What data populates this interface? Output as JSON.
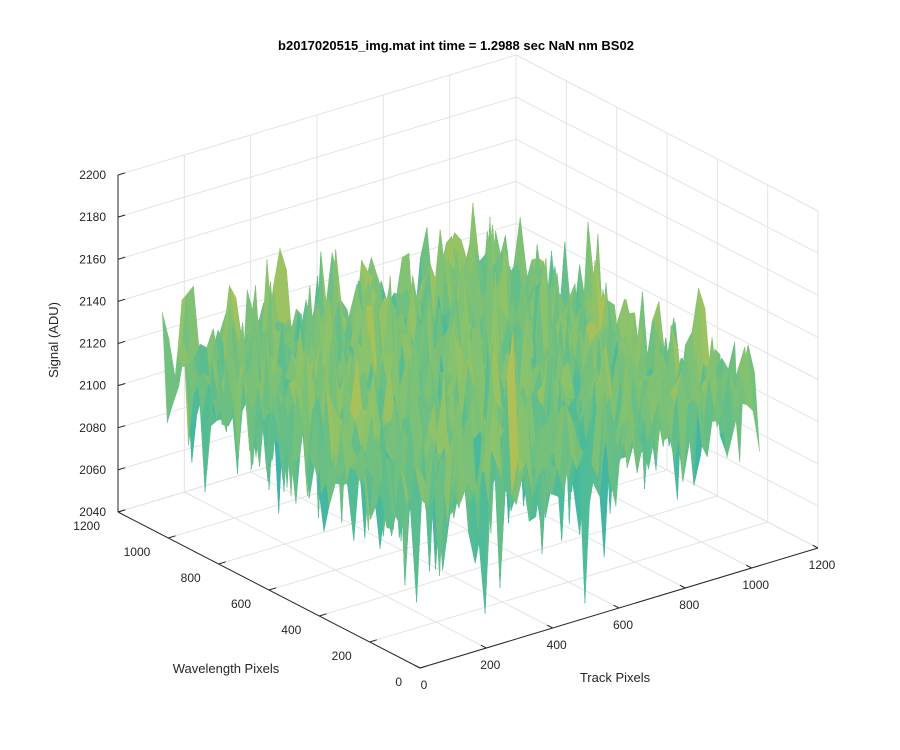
{
  "chart_data": {
    "type": "surface",
    "title": "b2017020515_img.mat int time = 1.2988 sec  NaN nm BS02",
    "xlabel": "Track Pixels",
    "ylabel": "Wavelength Pixels",
    "zlabel": "Signal (ADU)",
    "xlim": [
      0,
      1200
    ],
    "ylim": [
      0,
      1200
    ],
    "zlim": [
      2040,
      2200
    ],
    "x_ticks": [
      0,
      200,
      400,
      600,
      800,
      1000,
      1200
    ],
    "y_ticks": [
      0,
      200,
      400,
      600,
      800,
      1000,
      1200
    ],
    "z_ticks": [
      2040,
      2060,
      2080,
      2100,
      2120,
      2140,
      2160,
      2180,
      2200
    ],
    "grid": true,
    "surface_extent": {
      "x": [
        0,
        1024
      ],
      "y": [
        0,
        1024
      ]
    },
    "signal_mean": 2120,
    "signal_min_approx": 2045,
    "signal_max_approx": 2190,
    "colormap": [
      "#1f7fd1",
      "#26a8c5",
      "#4cbb9a",
      "#8ec36a",
      "#d6bd3f",
      "#f0b43a"
    ]
  }
}
